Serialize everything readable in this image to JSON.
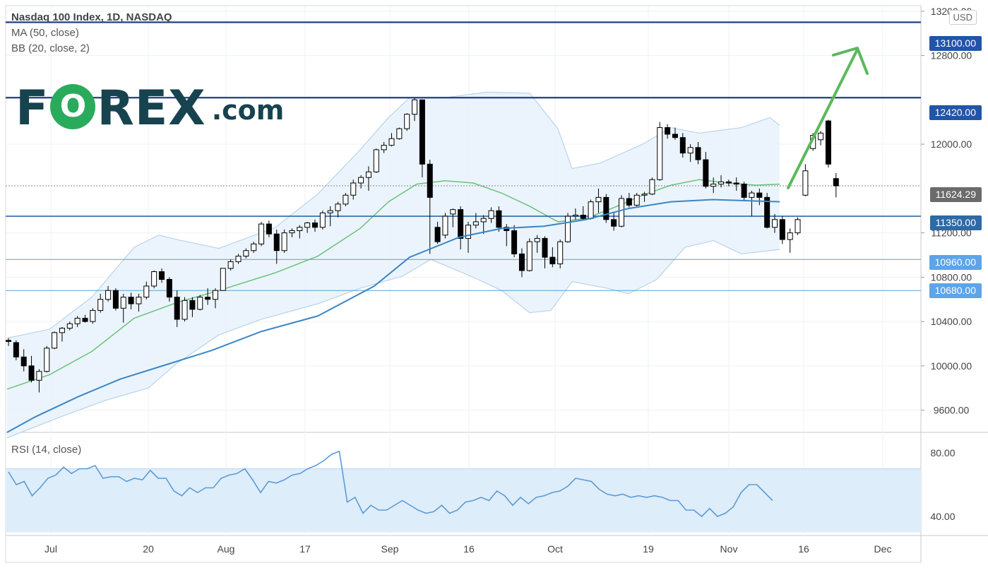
{
  "header": {
    "title": "Nasdaq 100 Index, 1D, NASDAQ",
    "ma_label": "MA (50, close)",
    "bb_label": "BB (20, close, 2)",
    "rsi_label": "RSI (14, close)",
    "currency": "USD"
  },
  "logo": {
    "prefix": "F",
    "o_glyph": "O",
    "suffix": "REX",
    "domain": ".com"
  },
  "price_badges": {
    "r13100": "13100.00",
    "r12420": "12420.00",
    "last": "11624.29",
    "s11350": "11350.00",
    "s10960": "10960.00",
    "s10680": "10680.00"
  },
  "colors": {
    "candle_up_fill": "#ffffff",
    "candle_down_fill": "#000000",
    "ma50": "#3b86c6",
    "bb_basis": "#6cc17a",
    "bb_fill": "#e8f2fb",
    "level_dark": "#1f3e8a",
    "level_mid": "#2d6aa6",
    "level_light": "#5c9fd0",
    "arrow": "#5cb85c",
    "rsi_line": "#5b9bd5",
    "rsi_band": "#deedfa"
  },
  "chart_data": {
    "type": "candlestick",
    "symbol": "Nasdaq 100 Index",
    "timeframe": "1D",
    "exchange": "NASDAQ",
    "price_axis": {
      "ticks": [
        9600,
        10000,
        10400,
        10800,
        11200,
        12000,
        12800,
        13200
      ],
      "labels": [
        "9600.00",
        "10000.00",
        "10400.00",
        "10800.00",
        "11200.00",
        "12000.00",
        "12800.00",
        "13200.00"
      ],
      "range": [
        9400,
        13250
      ]
    },
    "time_axis": {
      "labels": [
        "Jul",
        "20",
        "Aug",
        "17",
        "Sep",
        "16",
        "Oct",
        "19",
        "Nov",
        "16",
        "Dec"
      ]
    },
    "horizontal_levels": [
      13100,
      12420,
      11350,
      10960,
      10680
    ],
    "last_price": 11624.29,
    "candles_ohlc": [
      [
        10230,
        10250,
        10180,
        10220
      ],
      [
        10210,
        10230,
        10050,
        10080
      ],
      [
        10080,
        10150,
        9950,
        10000
      ],
      [
        10000,
        10090,
        9850,
        9870
      ],
      [
        9870,
        9970,
        9760,
        9950
      ],
      [
        9950,
        10180,
        9940,
        10160
      ],
      [
        10160,
        10310,
        10150,
        10300
      ],
      [
        10300,
        10350,
        10220,
        10340
      ],
      [
        10340,
        10400,
        10320,
        10380
      ],
      [
        10380,
        10450,
        10350,
        10430
      ],
      [
        10430,
        10460,
        10390,
        10400
      ],
      [
        10400,
        10520,
        10380,
        10500
      ],
      [
        10500,
        10650,
        10480,
        10600
      ],
      [
        10600,
        10720,
        10580,
        10680
      ],
      [
        10680,
        10700,
        10500,
        10520
      ],
      [
        10520,
        10650,
        10390,
        10620
      ],
      [
        10620,
        10660,
        10510,
        10560
      ],
      [
        10560,
        10650,
        10490,
        10620
      ],
      [
        10620,
        10760,
        10600,
        10720
      ],
      [
        10720,
        10860,
        10700,
        10850
      ],
      [
        10850,
        10880,
        10750,
        10780
      ],
      [
        10780,
        10800,
        10580,
        10620
      ],
      [
        10620,
        10680,
        10350,
        10420
      ],
      [
        10420,
        10620,
        10400,
        10590
      ],
      [
        10590,
        10620,
        10440,
        10510
      ],
      [
        10510,
        10640,
        10500,
        10620
      ],
      [
        10620,
        10700,
        10550,
        10600
      ],
      [
        10600,
        10700,
        10520,
        10680
      ],
      [
        10680,
        10880,
        10680,
        10880
      ],
      [
        10880,
        10960,
        10860,
        10940
      ],
      [
        10940,
        11010,
        10920,
        10990
      ],
      [
        10990,
        11060,
        10970,
        11040
      ],
      [
        11040,
        11120,
        11020,
        11100
      ],
      [
        11100,
        11300,
        11080,
        11280
      ],
      [
        11280,
        11310,
        11160,
        11190
      ],
      [
        11190,
        11230,
        10920,
        11040
      ],
      [
        11040,
        11230,
        11020,
        11200
      ],
      [
        11200,
        11240,
        11160,
        11220
      ],
      [
        11220,
        11270,
        11150,
        11250
      ],
      [
        11250,
        11300,
        11200,
        11290
      ],
      [
        11290,
        11320,
        11210,
        11250
      ],
      [
        11250,
        11400,
        11230,
        11380
      ],
      [
        11380,
        11440,
        11260,
        11400
      ],
      [
        11400,
        11480,
        11340,
        11460
      ],
      [
        11460,
        11560,
        11440,
        11540
      ],
      [
        11540,
        11680,
        11500,
        11650
      ],
      [
        11650,
        11720,
        11600,
        11700
      ],
      [
        11700,
        11800,
        11580,
        11750
      ],
      [
        11750,
        11960,
        11740,
        11950
      ],
      [
        11950,
        12020,
        11920,
        11990
      ],
      [
        11990,
        12100,
        11980,
        12050
      ],
      [
        12050,
        12150,
        12040,
        12140
      ],
      [
        12140,
        12280,
        12120,
        12270
      ],
      [
        12270,
        12420,
        12210,
        12400
      ],
      [
        12400,
        12400,
        11700,
        11820
      ],
      [
        11820,
        11860,
        11010,
        11520
      ],
      [
        11250,
        11300,
        11100,
        11120
      ],
      [
        11180,
        11380,
        11150,
        11350
      ],
      [
        11370,
        11420,
        11250,
        11410
      ],
      [
        11410,
        11440,
        11050,
        11150
      ],
      [
        11150,
        11300,
        11020,
        11270
      ],
      [
        11270,
        11380,
        11240,
        11300
      ],
      [
        11300,
        11360,
        11190,
        11330
      ],
      [
        11330,
        11430,
        11290,
        11400
      ],
      [
        11400,
        11440,
        11210,
        11250
      ],
      [
        11250,
        11280,
        11080,
        11220
      ],
      [
        11220,
        11270,
        10980,
        11010
      ],
      [
        11010,
        11060,
        10800,
        10860
      ],
      [
        10860,
        11150,
        10850,
        11120
      ],
      [
        11120,
        11180,
        11020,
        11150
      ],
      [
        11150,
        11170,
        10880,
        10980
      ],
      [
        10980,
        11070,
        10890,
        10920
      ],
      [
        10920,
        11140,
        10880,
        11120
      ],
      [
        11120,
        11380,
        11110,
        11350
      ],
      [
        11350,
        11420,
        11320,
        11360
      ],
      [
        11360,
        11440,
        11310,
        11330
      ],
      [
        11330,
        11500,
        11320,
        11480
      ],
      [
        11480,
        11600,
        11380,
        11520
      ],
      [
        11520,
        11550,
        11290,
        11320
      ],
      [
        11320,
        11380,
        11220,
        11260
      ],
      [
        11260,
        11540,
        11250,
        11510
      ],
      [
        11510,
        11560,
        11430,
        11450
      ],
      [
        11450,
        11560,
        11430,
        11540
      ],
      [
        11540,
        11570,
        11480,
        11550
      ],
      [
        11550,
        11700,
        11540,
        11680
      ],
      [
        11680,
        12200,
        11670,
        12150
      ],
      [
        12150,
        12180,
        12050,
        12090
      ],
      [
        12090,
        12150,
        12040,
        12060
      ],
      [
        12060,
        12100,
        11880,
        11920
      ],
      [
        11920,
        12000,
        11840,
        11970
      ],
      [
        11970,
        12020,
        11820,
        11860
      ],
      [
        11860,
        11930,
        11600,
        11620
      ],
      [
        11620,
        11700,
        11560,
        11640
      ],
      [
        11640,
        11720,
        11610,
        11660
      ],
      [
        11660,
        11680,
        11620,
        11650
      ],
      [
        11650,
        11700,
        11580,
        11640
      ],
      [
        11640,
        11660,
        11490,
        11520
      ],
      [
        11520,
        11580,
        11350,
        11560
      ],
      [
        11560,
        11600,
        11450,
        11520
      ],
      [
        11520,
        11560,
        11240,
        11250
      ],
      [
        11250,
        11370,
        11200,
        11320
      ],
      [
        11320,
        11350,
        11100,
        11140
      ],
      [
        11140,
        11240,
        11020,
        11200
      ],
      [
        11200,
        11340,
        11180,
        11320
      ],
      [
        11540,
        11820,
        11530,
        11760
      ],
      [
        11960,
        12100,
        11940,
        12080
      ],
      [
        12040,
        12120,
        11990,
        12100
      ],
      [
        12210,
        12220,
        11790,
        11820
      ],
      [
        11690,
        11740,
        11520,
        11624.29
      ]
    ],
    "ma50": [
      [
        0,
        9400
      ],
      [
        40,
        9540
      ],
      [
        100,
        9720
      ],
      [
        160,
        9880
      ],
      [
        220,
        10000
      ],
      [
        290,
        10140
      ],
      [
        360,
        10310
      ],
      [
        440,
        10450
      ],
      [
        520,
        10720
      ],
      [
        570,
        10980
      ],
      [
        640,
        11160
      ],
      [
        700,
        11240
      ],
      [
        760,
        11260
      ],
      [
        820,
        11320
      ],
      [
        880,
        11420
      ],
      [
        940,
        11480
      ],
      [
        1000,
        11500
      ],
      [
        1094,
        11480
      ]
    ],
    "bb_basis": [
      [
        0,
        9790
      ],
      [
        60,
        9920
      ],
      [
        120,
        10130
      ],
      [
        180,
        10430
      ],
      [
        240,
        10570
      ],
      [
        300,
        10680
      ],
      [
        380,
        10840
      ],
      [
        440,
        10990
      ],
      [
        500,
        11240
      ],
      [
        540,
        11480
      ],
      [
        580,
        11640
      ],
      [
        620,
        11670
      ],
      [
        660,
        11650
      ],
      [
        700,
        11560
      ],
      [
        740,
        11440
      ],
      [
        780,
        11300
      ],
      [
        820,
        11330
      ],
      [
        860,
        11430
      ],
      [
        900,
        11540
      ],
      [
        940,
        11630
      ],
      [
        980,
        11680
      ],
      [
        1020,
        11650
      ],
      [
        1060,
        11630
      ],
      [
        1094,
        11640
      ]
    ],
    "bb_upper": [
      [
        0,
        10250
      ],
      [
        60,
        10330
      ],
      [
        120,
        10620
      ],
      [
        180,
        11070
      ],
      [
        215,
        11180
      ],
      [
        240,
        11140
      ],
      [
        300,
        11060
      ],
      [
        380,
        11250
      ],
      [
        440,
        11550
      ],
      [
        500,
        11950
      ],
      [
        540,
        12240
      ],
      [
        570,
        12420
      ],
      [
        620,
        12420
      ],
      [
        680,
        12470
      ],
      [
        740,
        12460
      ],
      [
        780,
        12140
      ],
      [
        800,
        11780
      ],
      [
        840,
        11830
      ],
      [
        900,
        12000
      ],
      [
        940,
        12150
      ],
      [
        980,
        12100
      ],
      [
        1040,
        12150
      ],
      [
        1080,
        12240
      ],
      [
        1094,
        12170
      ]
    ],
    "bb_lower": [
      [
        0,
        9350
      ],
      [
        80,
        9550
      ],
      [
        140,
        9690
      ],
      [
        200,
        9800
      ],
      [
        240,
        10020
      ],
      [
        300,
        10280
      ],
      [
        360,
        10420
      ],
      [
        440,
        10560
      ],
      [
        500,
        10700
      ],
      [
        560,
        10810
      ],
      [
        600,
        10960
      ],
      [
        660,
        10800
      ],
      [
        700,
        10680
      ],
      [
        740,
        10480
      ],
      [
        770,
        10500
      ],
      [
        800,
        10760
      ],
      [
        850,
        10700
      ],
      [
        880,
        10650
      ],
      [
        920,
        10780
      ],
      [
        960,
        11070
      ],
      [
        1000,
        11130
      ],
      [
        1040,
        11010
      ],
      [
        1094,
        11050
      ]
    ],
    "rsi": {
      "axis_labels": [
        "80.00",
        "40.00"
      ],
      "axis_ticks": [
        80,
        40
      ],
      "band": [
        30,
        70
      ],
      "range": [
        28,
        92
      ],
      "values": [
        68,
        60,
        62,
        53,
        58,
        64,
        66,
        71,
        67,
        70,
        70,
        72,
        64,
        65,
        65,
        62,
        64,
        63,
        69,
        64,
        64,
        56,
        53,
        58,
        55,
        58,
        58,
        64,
        66,
        67,
        70,
        63,
        55,
        62,
        61,
        63,
        66,
        67,
        70,
        72,
        75,
        79,
        81,
        49,
        52,
        42,
        47,
        44,
        44,
        47,
        50,
        47,
        44,
        42,
        43,
        47,
        42,
        44,
        49,
        50,
        52,
        50,
        56,
        53,
        47,
        52,
        48,
        52,
        53,
        55,
        56,
        59,
        64,
        63,
        62,
        57,
        54,
        53,
        54,
        52,
        53,
        52,
        53,
        52,
        50,
        50,
        44,
        44,
        40,
        45,
        40,
        42,
        46,
        55,
        60,
        60,
        55,
        50
      ]
    }
  }
}
